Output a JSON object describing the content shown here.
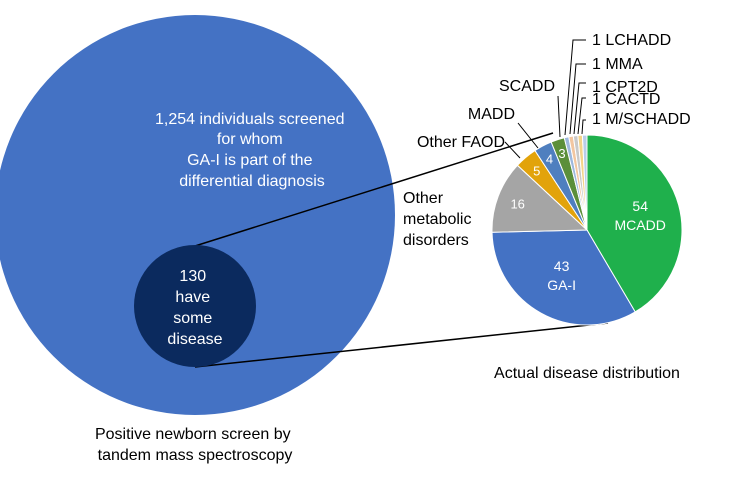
{
  "colors": {
    "big_circle": "#4472C4",
    "small_circle": "#0B2A5E",
    "connector": "#000000",
    "text_dark": "#000000",
    "text_light": "#FFFFFF"
  },
  "left": {
    "big_circle_text": [
      "1,254 individuals screened",
      "for whom",
      "GA-I is part of the",
      "differential diagnosis"
    ],
    "small_circle_text": [
      "130",
      "have",
      "some",
      "disease"
    ],
    "caption": [
      "Positive newborn screen by",
      "tandem mass spectroscopy"
    ]
  },
  "right": {
    "caption": "Actual disease distribution"
  },
  "chart_data": {
    "type": "pie",
    "slices": [
      {
        "label": "MCADD",
        "value": 54,
        "color": "#1FB04C",
        "inside": [
          "54",
          "MCADD"
        ]
      },
      {
        "label": "GA-I",
        "value": 43,
        "color": "#4472C4",
        "inside": [
          "43",
          "GA-I"
        ]
      },
      {
        "label": "Other metabolic disorders",
        "value": 16,
        "color": "#A5A5A5",
        "inside": [
          "16"
        ],
        "outside": [
          "Other",
          "metabolic",
          "disorders"
        ]
      },
      {
        "label": "Other FAOD",
        "value": 5,
        "color": "#E2A30B",
        "inside": [
          "5"
        ],
        "outside": [
          "Other FAOD"
        ]
      },
      {
        "label": "MADD",
        "value": 4,
        "color": "#4F7FBF",
        "inside": [
          "4"
        ],
        "outside": [
          "MADD"
        ]
      },
      {
        "label": "SCADD",
        "value": 3,
        "color": "#5B8F3A",
        "inside": [
          "3"
        ],
        "outside": [
          "SCADD"
        ]
      },
      {
        "label": "LCHADD",
        "value": 1,
        "color": "#9DB8DD",
        "outside": [
          "1 LCHADD"
        ]
      },
      {
        "label": "MMA",
        "value": 1,
        "color": "#F2C6A0",
        "outside": [
          "1 MMA"
        ]
      },
      {
        "label": "CPT2D",
        "value": 1,
        "color": "#C9C9C9",
        "outside": [
          "1 CPT2D"
        ]
      },
      {
        "label": "CACTD",
        "value": 1,
        "color": "#F4D48A",
        "outside": [
          "1 CACTD"
        ]
      },
      {
        "label": "M/SCHADD",
        "value": 1,
        "color": "#B9CDE8",
        "outside": [
          "1 M/SCHADD"
        ]
      }
    ]
  }
}
